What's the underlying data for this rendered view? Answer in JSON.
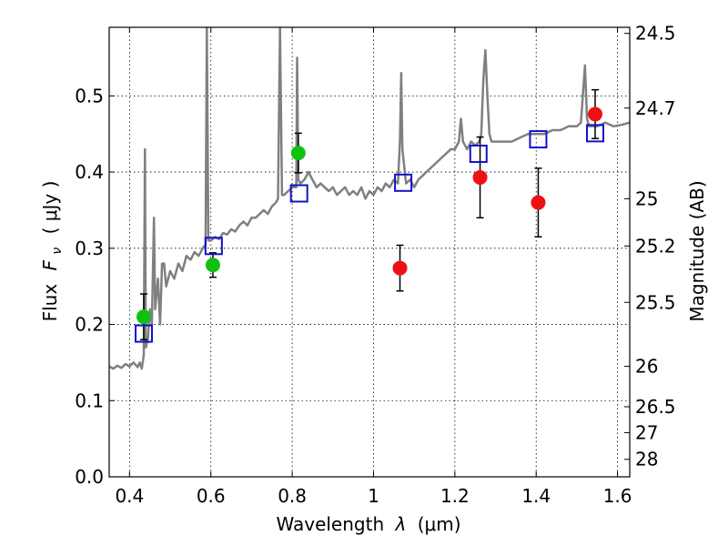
{
  "chart_data": {
    "type": "scatter",
    "xlabel_text": "Wavelength",
    "xlabel_symbol": "λ",
    "xlabel_unit": "(μm)",
    "ylabel_text": "Flux",
    "ylabel_symbol": "F",
    "ylabel_subscript": "ν",
    "ylabel_unit": "( μJy )",
    "y2label": "Magnitude (AB)",
    "xlim": [
      0.35,
      1.63
    ],
    "ylim": [
      0.0,
      0.59
    ],
    "grid": true,
    "x_ticks": [
      {
        "value": 0.4,
        "label": "0.4"
      },
      {
        "value": 0.6,
        "label": "0.6"
      },
      {
        "value": 0.8,
        "label": "0.8"
      },
      {
        "value": 1.0,
        "label": "1"
      },
      {
        "value": 1.2,
        "label": "1.2"
      },
      {
        "value": 1.4,
        "label": "1.4"
      },
      {
        "value": 1.6,
        "label": "1.6"
      }
    ],
    "y_ticks": [
      {
        "value": 0.0,
        "label": "0.0"
      },
      {
        "value": 0.1,
        "label": "0.1"
      },
      {
        "value": 0.2,
        "label": "0.2"
      },
      {
        "value": 0.3,
        "label": "0.3"
      },
      {
        "value": 0.4,
        "label": "0.4"
      },
      {
        "value": 0.5,
        "label": "0.5"
      }
    ],
    "y2_ticks": [
      {
        "flux": 0.582,
        "label": "24.5"
      },
      {
        "flux": 0.484,
        "label": "24.7"
      },
      {
        "flux": 0.365,
        "label": "25"
      },
      {
        "flux": 0.303,
        "label": "25.2"
      },
      {
        "flux": 0.229,
        "label": "25.5"
      },
      {
        "flux": 0.145,
        "label": "26"
      },
      {
        "flux": 0.092,
        "label": "26.5"
      },
      {
        "flux": 0.058,
        "label": "27"
      },
      {
        "flux": 0.023,
        "label": "28"
      }
    ],
    "colors": {
      "spectrum": "#808080",
      "green_points": "#11c011",
      "red_points": "#ee1111",
      "model_squares": "#1111cc",
      "error_bars": "#000000"
    },
    "spectrum": [
      [
        0.35,
        0.145
      ],
      [
        0.36,
        0.142
      ],
      [
        0.37,
        0.146
      ],
      [
        0.38,
        0.143
      ],
      [
        0.39,
        0.148
      ],
      [
        0.4,
        0.145
      ],
      [
        0.41,
        0.15
      ],
      [
        0.42,
        0.144
      ],
      [
        0.425,
        0.15
      ],
      [
        0.43,
        0.142
      ],
      [
        0.435,
        0.16
      ],
      [
        0.438,
        0.43
      ],
      [
        0.44,
        0.17
      ],
      [
        0.445,
        0.18
      ],
      [
        0.45,
        0.22
      ],
      [
        0.455,
        0.2
      ],
      [
        0.46,
        0.34
      ],
      [
        0.463,
        0.22
      ],
      [
        0.47,
        0.26
      ],
      [
        0.475,
        0.2
      ],
      [
        0.48,
        0.28
      ],
      [
        0.485,
        0.28
      ],
      [
        0.49,
        0.25
      ],
      [
        0.5,
        0.27
      ],
      [
        0.51,
        0.26
      ],
      [
        0.52,
        0.28
      ],
      [
        0.53,
        0.27
      ],
      [
        0.54,
        0.29
      ],
      [
        0.55,
        0.285
      ],
      [
        0.56,
        0.295
      ],
      [
        0.57,
        0.29
      ],
      [
        0.58,
        0.3
      ],
      [
        0.587,
        0.305
      ],
      [
        0.59,
        0.59
      ],
      [
        0.594,
        0.31
      ],
      [
        0.6,
        0.31
      ],
      [
        0.61,
        0.315
      ],
      [
        0.62,
        0.312
      ],
      [
        0.63,
        0.32
      ],
      [
        0.64,
        0.318
      ],
      [
        0.65,
        0.325
      ],
      [
        0.66,
        0.322
      ],
      [
        0.67,
        0.33
      ],
      [
        0.68,
        0.335
      ],
      [
        0.69,
        0.33
      ],
      [
        0.7,
        0.34
      ],
      [
        0.71,
        0.34
      ],
      [
        0.72,
        0.345
      ],
      [
        0.73,
        0.35
      ],
      [
        0.74,
        0.345
      ],
      [
        0.75,
        0.355
      ],
      [
        0.76,
        0.36
      ],
      [
        0.765,
        0.365
      ],
      [
        0.77,
        0.59
      ],
      [
        0.775,
        0.37
      ],
      [
        0.78,
        0.37
      ],
      [
        0.79,
        0.375
      ],
      [
        0.8,
        0.38
      ],
      [
        0.81,
        0.38
      ],
      [
        0.812,
        0.55
      ],
      [
        0.815,
        0.39
      ],
      [
        0.82,
        0.385
      ],
      [
        0.83,
        0.39
      ],
      [
        0.84,
        0.4
      ],
      [
        0.85,
        0.39
      ],
      [
        0.86,
        0.38
      ],
      [
        0.87,
        0.385
      ],
      [
        0.88,
        0.38
      ],
      [
        0.89,
        0.375
      ],
      [
        0.9,
        0.38
      ],
      [
        0.91,
        0.37
      ],
      [
        0.92,
        0.375
      ],
      [
        0.93,
        0.38
      ],
      [
        0.94,
        0.37
      ],
      [
        0.95,
        0.375
      ],
      [
        0.96,
        0.37
      ],
      [
        0.97,
        0.38
      ],
      [
        0.98,
        0.365
      ],
      [
        0.99,
        0.375
      ],
      [
        1.0,
        0.37
      ],
      [
        1.01,
        0.38
      ],
      [
        1.02,
        0.375
      ],
      [
        1.03,
        0.385
      ],
      [
        1.04,
        0.38
      ],
      [
        1.05,
        0.39
      ],
      [
        1.06,
        0.385
      ],
      [
        1.065,
        0.44
      ],
      [
        1.068,
        0.53
      ],
      [
        1.071,
        0.43
      ],
      [
        1.08,
        0.385
      ],
      [
        1.09,
        0.39
      ],
      [
        1.1,
        0.38
      ],
      [
        1.11,
        0.39
      ],
      [
        1.12,
        0.395
      ],
      [
        1.13,
        0.4
      ],
      [
        1.14,
        0.405
      ],
      [
        1.15,
        0.41
      ],
      [
        1.16,
        0.415
      ],
      [
        1.17,
        0.42
      ],
      [
        1.18,
        0.425
      ],
      [
        1.19,
        0.43
      ],
      [
        1.2,
        0.43
      ],
      [
        1.21,
        0.44
      ],
      [
        1.215,
        0.47
      ],
      [
        1.22,
        0.44
      ],
      [
        1.23,
        0.43
      ],
      [
        1.24,
        0.44
      ],
      [
        1.25,
        0.435
      ],
      [
        1.26,
        0.44
      ],
      [
        1.265,
        0.45
      ],
      [
        1.27,
        0.52
      ],
      [
        1.275,
        0.56
      ],
      [
        1.28,
        0.5
      ],
      [
        1.285,
        0.45
      ],
      [
        1.29,
        0.44
      ],
      [
        1.3,
        0.44
      ],
      [
        1.32,
        0.44
      ],
      [
        1.34,
        0.44
      ],
      [
        1.36,
        0.445
      ],
      [
        1.38,
        0.45
      ],
      [
        1.4,
        0.45
      ],
      [
        1.42,
        0.45
      ],
      [
        1.44,
        0.455
      ],
      [
        1.46,
        0.455
      ],
      [
        1.48,
        0.46
      ],
      [
        1.5,
        0.46
      ],
      [
        1.51,
        0.465
      ],
      [
        1.52,
        0.54
      ],
      [
        1.525,
        0.47
      ],
      [
        1.53,
        0.46
      ],
      [
        1.55,
        0.46
      ],
      [
        1.57,
        0.465
      ],
      [
        1.59,
        0.46
      ],
      [
        1.61,
        0.462
      ],
      [
        1.63,
        0.465
      ]
    ],
    "series": [
      {
        "marker": "circle",
        "color_key": "green_points",
        "points": [
          {
            "x": 0.435,
            "y": 0.21,
            "err": 0.03
          },
          {
            "x": 0.605,
            "y": 0.278,
            "err": 0.016
          },
          {
            "x": 0.815,
            "y": 0.425,
            "err": 0.026
          }
        ]
      },
      {
        "marker": "circle",
        "color_key": "red_points",
        "points": [
          {
            "x": 1.065,
            "y": 0.274,
            "err": 0.03
          },
          {
            "x": 1.262,
            "y": 0.393,
            "err": 0.053
          },
          {
            "x": 1.405,
            "y": 0.36,
            "err": 0.045
          },
          {
            "x": 1.545,
            "y": 0.476,
            "err": 0.032
          }
        ]
      },
      {
        "marker": "square",
        "color_key": "model_squares",
        "points": [
          {
            "x": 0.435,
            "y": 0.188
          },
          {
            "x": 0.607,
            "y": 0.303
          },
          {
            "x": 0.817,
            "y": 0.372
          },
          {
            "x": 1.073,
            "y": 0.386
          },
          {
            "x": 1.258,
            "y": 0.424
          },
          {
            "x": 1.405,
            "y": 0.443
          },
          {
            "x": 1.545,
            "y": 0.451
          }
        ]
      }
    ]
  }
}
